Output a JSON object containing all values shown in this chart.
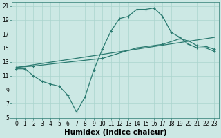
{
  "xlabel": "Humidex (Indice chaleur)",
  "bg_color": "#cce8e4",
  "grid_color": "#aad4ce",
  "line_color": "#2a7a70",
  "xlim": [
    -0.5,
    23.5
  ],
  "ylim": [
    5,
    21.5
  ],
  "xticks": [
    0,
    1,
    2,
    3,
    4,
    5,
    6,
    7,
    8,
    9,
    10,
    11,
    12,
    13,
    14,
    15,
    16,
    17,
    18,
    19,
    20,
    21,
    22,
    23
  ],
  "yticks": [
    5,
    7,
    9,
    11,
    13,
    15,
    17,
    19,
    21
  ],
  "line1_x": [
    0,
    1,
    2,
    3,
    4,
    5,
    6,
    7,
    8,
    9,
    10,
    11,
    12,
    13,
    14,
    15,
    16,
    17,
    18,
    19,
    20,
    21,
    22,
    23
  ],
  "line1_y": [
    12.0,
    12.0,
    11.0,
    10.2,
    9.8,
    9.5,
    8.2,
    5.8,
    8.0,
    11.8,
    14.8,
    17.4,
    19.2,
    19.5,
    20.5,
    20.5,
    20.7,
    19.5,
    17.2,
    16.5,
    15.5,
    15.0,
    15.0,
    14.5
  ],
  "line2_x": [
    0,
    23
  ],
  "line2_y": [
    12.2,
    16.5
  ],
  "line3_x": [
    0,
    2,
    10,
    14,
    17,
    19,
    20,
    21,
    22,
    23
  ],
  "line3_y": [
    12.2,
    12.4,
    13.5,
    15.0,
    15.5,
    16.3,
    16.0,
    15.3,
    15.2,
    14.8
  ],
  "marker": "+",
  "markersize": 3.5,
  "linewidth": 0.9,
  "tick_fontsize": 5.5,
  "xlabel_fontsize": 7.5
}
